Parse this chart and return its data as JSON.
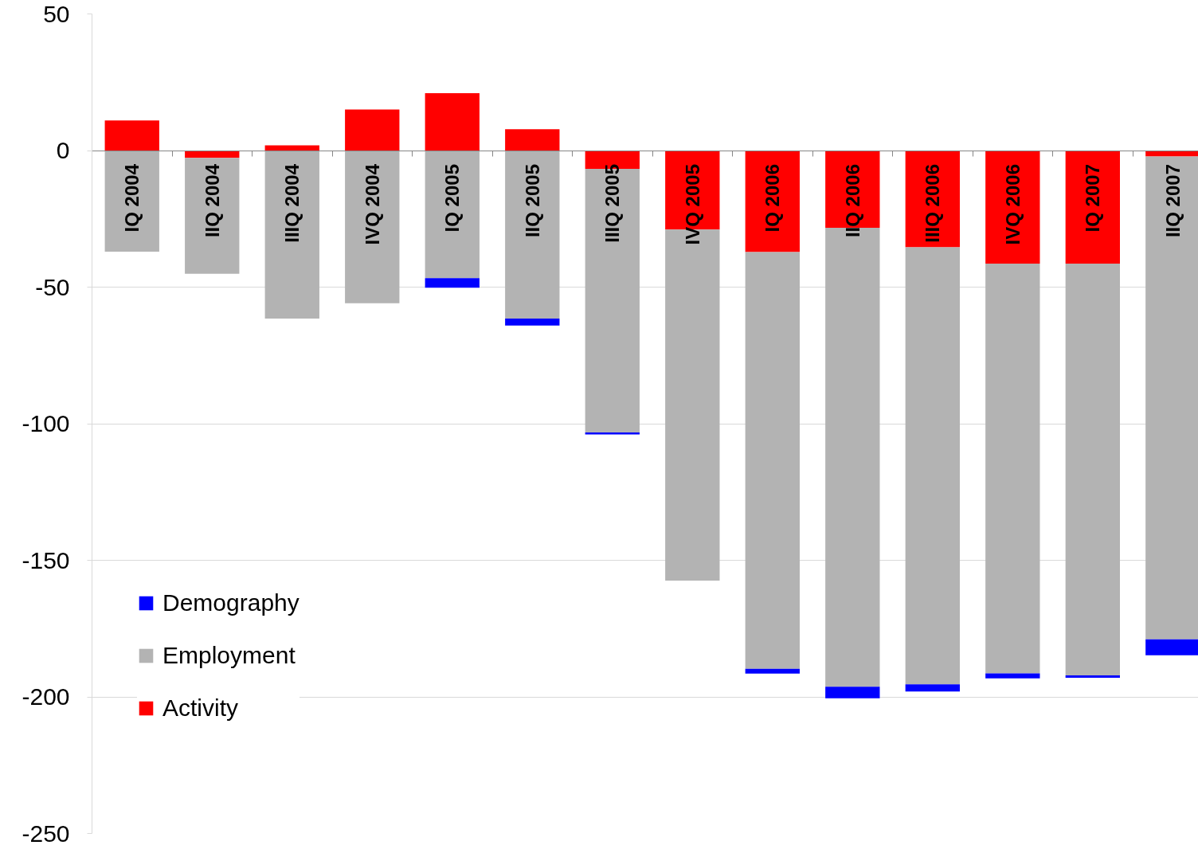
{
  "chart_data": {
    "type": "bar",
    "stacked": true,
    "categories": [
      "IQ 2004",
      "IIQ 2004",
      "IIIQ 2004",
      "IVQ 2004",
      "IQ 2005",
      "IIQ 2005",
      "IIIQ 2005",
      "IVQ 2005",
      "IQ 2006",
      "IIQ 2006",
      "IIIQ 2006",
      "IVQ 2006",
      "IQ 2007",
      "IIQ 2007"
    ],
    "series": [
      {
        "name": "Activity",
        "color": "#ff0000",
        "values": [
          11,
          -2.7,
          1.9,
          15,
          21,
          7.8,
          -6.7,
          -28.9,
          -37.2,
          -28.3,
          -35.4,
          -41.4,
          -41.4,
          -2.2
        ]
      },
      {
        "name": "Employment",
        "color": "#b3b3b3",
        "values": [
          -37,
          -42.4,
          -61.5,
          -55.9,
          -46.7,
          -61.5,
          -96.5,
          -128.5,
          -152.5,
          -168,
          -160,
          -150,
          -150.7,
          -176.7
        ]
      },
      {
        "name": "Demography",
        "color": "#0000ff",
        "values": [
          null,
          null,
          null,
          null,
          -3.5,
          -2.6,
          -0.7,
          null,
          -1.8,
          -4.2,
          -2.6,
          -1.8,
          -0.9,
          -5.9
        ]
      }
    ],
    "ylim": [
      -250,
      50
    ],
    "yticks": [
      -250,
      -200,
      -150,
      -100,
      -50,
      0,
      50
    ],
    "grid": "y",
    "legend": "bottom left"
  }
}
